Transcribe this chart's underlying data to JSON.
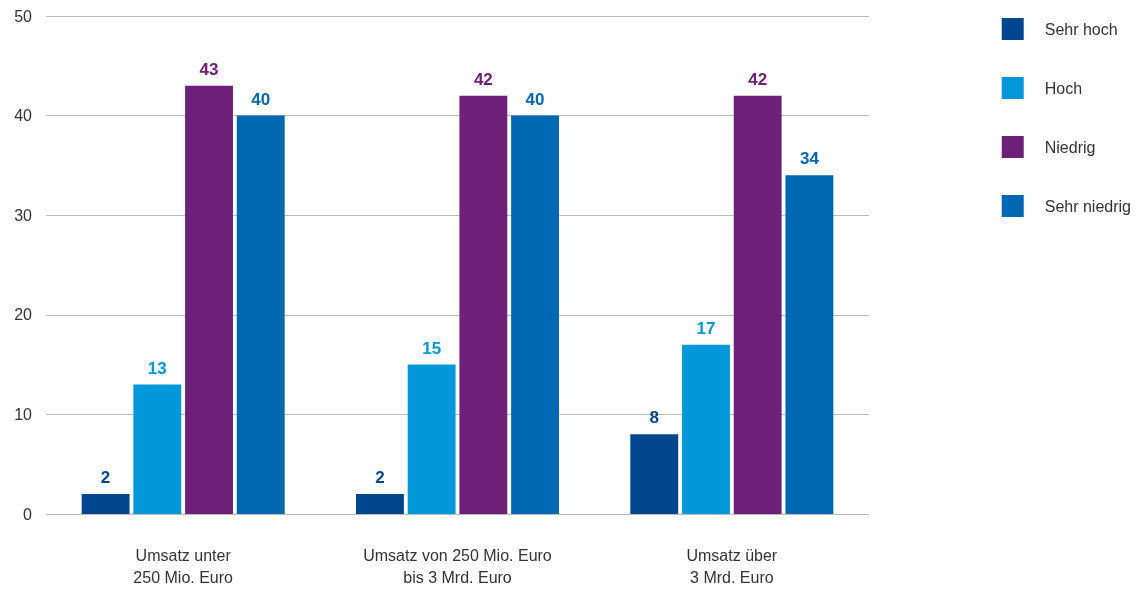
{
  "chart_data": {
    "type": "bar",
    "categories": [
      "Umsatz unter\n250 Mio. Euro",
      "Umsatz von 250 Mio. Euro\nbis 3 Mrd. Euro",
      "Umsatz über\n3 Mrd. Euro"
    ],
    "series": [
      {
        "name": "Sehr hoch",
        "color": "#00468e",
        "values": [
          2,
          2,
          8
        ]
      },
      {
        "name": "Hoch",
        "color": "#0098d8",
        "values": [
          13,
          15,
          17
        ]
      },
      {
        "name": "Niedrig",
        "color": "#6d2077",
        "values": [
          43,
          42,
          42
        ]
      },
      {
        "name": "Sehr niedrig",
        "color": "#0067b2",
        "values": [
          40,
          40,
          34
        ]
      }
    ],
    "ylim": [
      0,
      50
    ],
    "yticks": [
      0,
      10,
      20,
      30,
      40,
      50
    ],
    "grid": "y",
    "legend": "top right",
    "data_labels": true
  }
}
